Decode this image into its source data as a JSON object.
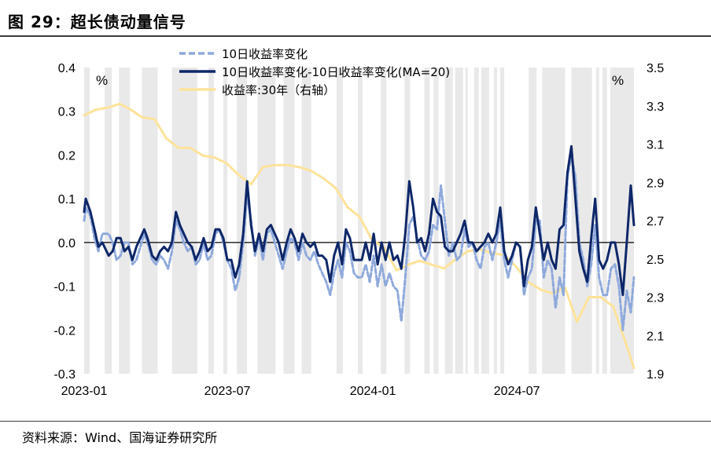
{
  "header": {
    "title": "图 29：超长债动量信号"
  },
  "footer": {
    "source": "资料来源：Wind、国海证券研究所"
  },
  "chart_data": {
    "type": "line",
    "left_unit": "%",
    "right_unit": "%",
    "y_left": {
      "min": -0.3,
      "max": 0.4,
      "ticks": [
        "0.4",
        "0.3",
        "0.2",
        "0.1",
        "0.0",
        "-0.1",
        "-0.2",
        "-0.3"
      ]
    },
    "y_right": {
      "min": 1.9,
      "max": 3.5,
      "ticks": [
        "3.5",
        "3.3",
        "3.1",
        "2.9",
        "2.7",
        "2.5",
        "2.3",
        "2.1",
        "1.9"
      ]
    },
    "x_range": [
      "2023-01-01",
      "2024-11-26"
    ],
    "x_ticks": [
      "2023-01",
      "2023-07",
      "2024-01",
      "2024-07"
    ],
    "colors": {
      "diff_10d": "#8ea9dc",
      "diff_ma": "#0e2769",
      "yield_30y": "#fde39a",
      "shade": "#e9e9e9",
      "zero_line": "#000000"
    },
    "legend": [
      {
        "name": "10日收益率变化",
        "style": "dashed",
        "color": "#8ea9dc"
      },
      {
        "name": "10日收益率变化-10日收益率变化(MA=20)",
        "style": "solid",
        "color": "#0e2769"
      },
      {
        "name": "收益率:30年（右轴）",
        "style": "solid",
        "color": "#fde39a"
      }
    ],
    "shaded_periods": [
      [
        "2022-12-29",
        "2023-01-08"
      ],
      [
        "2023-01-27",
        "2023-02-05"
      ],
      [
        "2023-02-14",
        "2023-02-28"
      ],
      [
        "2023-03-15",
        "2023-04-04"
      ],
      [
        "2023-04-22",
        "2023-05-24"
      ],
      [
        "2023-06-07",
        "2023-06-14"
      ],
      [
        "2023-06-26",
        "2023-07-01"
      ],
      [
        "2023-07-13",
        "2023-07-26"
      ],
      [
        "2023-08-08",
        "2023-08-31"
      ],
      [
        "2023-09-10",
        "2023-09-24"
      ],
      [
        "2023-10-03",
        "2023-10-15"
      ],
      [
        "2023-11-16",
        "2023-11-24"
      ],
      [
        "2023-12-13",
        "2023-12-19"
      ],
      [
        "2024-01-11",
        "2024-01-18"
      ],
      [
        "2024-02-10",
        "2024-02-17"
      ],
      [
        "2024-03-06",
        "2024-03-13"
      ],
      [
        "2024-03-18",
        "2024-03-24"
      ],
      [
        "2024-04-01",
        "2024-04-11"
      ],
      [
        "2024-04-14",
        "2024-04-24"
      ],
      [
        "2024-04-27",
        "2024-04-30"
      ],
      [
        "2024-05-08",
        "2024-05-14"
      ],
      [
        "2024-05-17",
        "2024-05-27"
      ],
      [
        "2024-06-02",
        "2024-06-06"
      ],
      [
        "2024-06-10",
        "2024-06-15"
      ],
      [
        "2024-07-16",
        "2024-07-26"
      ],
      [
        "2024-08-02",
        "2024-08-31"
      ],
      [
        "2024-09-08",
        "2024-10-04"
      ],
      [
        "2024-10-09",
        "2024-10-13"
      ],
      [
        "2024-10-17",
        "2024-10-23"
      ],
      [
        "2024-10-27",
        "2024-11-26"
      ]
    ],
    "series": [
      {
        "name": "10日收益率变化",
        "axis": "left",
        "x": [
          "2023-01-01",
          "2023-01-03",
          "2023-01-09",
          "2023-01-14",
          "2023-01-19",
          "2023-01-24",
          "2023-02-01",
          "2023-02-06",
          "2023-02-11",
          "2023-02-16",
          "2023-02-21",
          "2023-02-26",
          "2023-03-03",
          "2023-03-08",
          "2023-03-13",
          "2023-03-18",
          "2023-03-22",
          "2023-03-28",
          "2023-04-02",
          "2023-04-07",
          "2023-04-12",
          "2023-04-17",
          "2023-04-22",
          "2023-04-27",
          "2023-05-02",
          "2023-05-07",
          "2023-05-12",
          "2023-05-17",
          "2023-05-22",
          "2023-05-27",
          "2023-06-01",
          "2023-06-06",
          "2023-06-11",
          "2023-06-16",
          "2023-06-21",
          "2023-06-26",
          "2023-07-01",
          "2023-07-06",
          "2023-07-11",
          "2023-07-16",
          "2023-07-21",
          "2023-07-26",
          "2023-07-31",
          "2023-08-05",
          "2023-08-10",
          "2023-08-15",
          "2023-08-20",
          "2023-08-25",
          "2023-08-30",
          "2023-09-04",
          "2023-09-09",
          "2023-09-14",
          "2023-09-19",
          "2023-09-24",
          "2023-09-29",
          "2023-10-04",
          "2023-10-09",
          "2023-10-14",
          "2023-10-19",
          "2023-10-24",
          "2023-10-29",
          "2023-11-03",
          "2023-11-08",
          "2023-11-13",
          "2023-11-18",
          "2023-11-23",
          "2023-11-28",
          "2023-12-03",
          "2023-12-08",
          "2023-12-13",
          "2023-12-18",
          "2023-12-23",
          "2023-12-28",
          "2024-01-02",
          "2024-01-07",
          "2024-01-12",
          "2024-01-17",
          "2024-01-22",
          "2024-01-27",
          "2024-02-01",
          "2024-02-06",
          "2024-02-11",
          "2024-02-16",
          "2024-02-21",
          "2024-02-26",
          "2024-03-02",
          "2024-03-07",
          "2024-03-12",
          "2024-03-17",
          "2024-03-22",
          "2024-03-27",
          "2024-04-01",
          "2024-04-06",
          "2024-04-11",
          "2024-04-16",
          "2024-04-21",
          "2024-04-26",
          "2024-05-01",
          "2024-05-06",
          "2024-05-11",
          "2024-05-16",
          "2024-05-21",
          "2024-05-26",
          "2024-05-31",
          "2024-06-05",
          "2024-06-10",
          "2024-06-15",
          "2024-06-20",
          "2024-06-25",
          "2024-06-30",
          "2024-07-05",
          "2024-07-10",
          "2024-07-15",
          "2024-07-20",
          "2024-07-25",
          "2024-07-30",
          "2024-08-04",
          "2024-08-09",
          "2024-08-14",
          "2024-08-19",
          "2024-08-24",
          "2024-08-29",
          "2024-09-03",
          "2024-09-08",
          "2024-09-13",
          "2024-09-18",
          "2024-09-23",
          "2024-09-28",
          "2024-10-03",
          "2024-10-08",
          "2024-10-13",
          "2024-10-18",
          "2024-10-23",
          "2024-10-28",
          "2024-11-02",
          "2024-11-07",
          "2024-11-12",
          "2024-11-17",
          "2024-11-22",
          "2024-11-26"
        ],
        "values": [
          0.05,
          0.08,
          0.06,
          0.01,
          -0.02,
          0.02,
          0.02,
          0.0,
          -0.04,
          -0.03,
          0.0,
          0.0,
          -0.05,
          -0.04,
          -0.01,
          0.02,
          0.0,
          -0.04,
          -0.05,
          -0.03,
          -0.04,
          -0.06,
          -0.02,
          0.05,
          0.03,
          0.0,
          -0.02,
          -0.01,
          -0.05,
          -0.04,
          0.0,
          -0.04,
          -0.03,
          0.02,
          0.03,
          0.0,
          -0.04,
          -0.06,
          -0.11,
          -0.08,
          0.0,
          0.11,
          0.05,
          -0.03,
          0.01,
          -0.04,
          0.02,
          0.03,
          0.0,
          -0.03,
          -0.06,
          -0.02,
          0.01,
          0.0,
          -0.04,
          0.0,
          -0.03,
          -0.04,
          -0.02,
          -0.05,
          -0.07,
          -0.09,
          -0.12,
          -0.07,
          -0.04,
          -0.08,
          0.0,
          -0.02,
          -0.07,
          -0.08,
          -0.08,
          -0.05,
          -0.09,
          -0.03,
          -0.1,
          -0.05,
          -0.1,
          -0.07,
          -0.1,
          -0.11,
          -0.18,
          -0.08,
          0.04,
          0.06,
          0.01,
          -0.03,
          -0.04,
          -0.02,
          0.04,
          0.03,
          0.13,
          0.05,
          -0.03,
          0.0,
          -0.04,
          -0.03,
          0.03,
          -0.01,
          0.0,
          -0.04,
          -0.06,
          -0.01,
          0.0,
          -0.04,
          0.0,
          0.05,
          -0.04,
          -0.08,
          -0.04,
          0.0,
          -0.01,
          -0.12,
          -0.08,
          -0.06,
          0.05,
          0.05,
          -0.08,
          -0.04,
          -0.06,
          -0.15,
          -0.08,
          -0.12,
          0.15,
          0.2,
          0.15,
          0.0,
          -0.04,
          -0.1,
          -0.05,
          0.04,
          -0.08,
          -0.12,
          -0.12,
          -0.06,
          -0.05,
          -0.1,
          -0.2,
          -0.11,
          -0.16,
          -0.08
        ]
      },
      {
        "name": "10日收益率变化-10日收益率变化(MA=20)",
        "axis": "left",
        "x": [
          "2023-01-01",
          "2023-01-03",
          "2023-01-09",
          "2023-01-14",
          "2023-01-19",
          "2023-01-24",
          "2023-02-01",
          "2023-02-06",
          "2023-02-11",
          "2023-02-16",
          "2023-02-21",
          "2023-02-26",
          "2023-03-03",
          "2023-03-08",
          "2023-03-13",
          "2023-03-18",
          "2023-03-22",
          "2023-03-28",
          "2023-04-02",
          "2023-04-07",
          "2023-04-12",
          "2023-04-17",
          "2023-04-22",
          "2023-04-27",
          "2023-05-02",
          "2023-05-07",
          "2023-05-12",
          "2023-05-17",
          "2023-05-22",
          "2023-05-27",
          "2023-06-01",
          "2023-06-06",
          "2023-06-11",
          "2023-06-16",
          "2023-06-21",
          "2023-06-26",
          "2023-07-01",
          "2023-07-06",
          "2023-07-11",
          "2023-07-16",
          "2023-07-21",
          "2023-07-26",
          "2023-07-31",
          "2023-08-05",
          "2023-08-10",
          "2023-08-15",
          "2023-08-20",
          "2023-08-25",
          "2023-08-30",
          "2023-09-04",
          "2023-09-09",
          "2023-09-14",
          "2023-09-19",
          "2023-09-24",
          "2023-09-29",
          "2023-10-04",
          "2023-10-09",
          "2023-10-14",
          "2023-10-19",
          "2023-10-24",
          "2023-10-29",
          "2023-11-03",
          "2023-11-08",
          "2023-11-13",
          "2023-11-18",
          "2023-11-23",
          "2023-11-28",
          "2023-12-03",
          "2023-12-08",
          "2023-12-13",
          "2023-12-18",
          "2023-12-23",
          "2023-12-28",
          "2024-01-02",
          "2024-01-07",
          "2024-01-12",
          "2024-01-17",
          "2024-01-22",
          "2024-01-27",
          "2024-02-01",
          "2024-02-06",
          "2024-02-11",
          "2024-02-16",
          "2024-02-21",
          "2024-02-26",
          "2024-03-02",
          "2024-03-07",
          "2024-03-12",
          "2024-03-17",
          "2024-03-22",
          "2024-03-27",
          "2024-04-01",
          "2024-04-06",
          "2024-04-11",
          "2024-04-16",
          "2024-04-21",
          "2024-04-26",
          "2024-05-01",
          "2024-05-06",
          "2024-05-11",
          "2024-05-16",
          "2024-05-21",
          "2024-05-26",
          "2024-05-31",
          "2024-06-05",
          "2024-06-10",
          "2024-06-15",
          "2024-06-20",
          "2024-06-25",
          "2024-06-30",
          "2024-07-05",
          "2024-07-10",
          "2024-07-15",
          "2024-07-20",
          "2024-07-25",
          "2024-07-30",
          "2024-08-04",
          "2024-08-09",
          "2024-08-14",
          "2024-08-19",
          "2024-08-24",
          "2024-08-29",
          "2024-09-03",
          "2024-09-08",
          "2024-09-13",
          "2024-09-18",
          "2024-09-23",
          "2024-09-28",
          "2024-10-03",
          "2024-10-08",
          "2024-10-13",
          "2024-10-18",
          "2024-10-23",
          "2024-10-28",
          "2024-11-02",
          "2024-11-07",
          "2024-11-12",
          "2024-11-17",
          "2024-11-22",
          "2024-11-26"
        ],
        "values": [
          0.07,
          0.1,
          0.07,
          0.03,
          -0.01,
          0.0,
          -0.03,
          -0.02,
          0.01,
          0.01,
          -0.02,
          -0.01,
          -0.04,
          -0.01,
          0.01,
          0.03,
          0.01,
          -0.03,
          -0.04,
          -0.02,
          -0.01,
          -0.02,
          0.0,
          0.07,
          0.04,
          0.02,
          0.0,
          -0.01,
          -0.04,
          -0.02,
          0.01,
          -0.02,
          -0.01,
          0.03,
          0.03,
          0.01,
          -0.04,
          -0.04,
          -0.08,
          -0.05,
          0.02,
          0.14,
          0.04,
          -0.02,
          0.02,
          -0.02,
          0.03,
          0.04,
          0.02,
          0.0,
          -0.04,
          0.0,
          0.03,
          0.01,
          -0.02,
          0.02,
          0.0,
          -0.01,
          0.0,
          -0.03,
          -0.03,
          -0.04,
          -0.09,
          -0.03,
          0.0,
          -0.05,
          0.03,
          0.01,
          -0.04,
          -0.04,
          -0.04,
          0.0,
          -0.04,
          0.02,
          -0.05,
          0.0,
          -0.04,
          0.0,
          -0.04,
          -0.03,
          -0.06,
          0.02,
          0.14,
          0.08,
          0.0,
          0.01,
          -0.02,
          0.02,
          0.1,
          0.07,
          0.06,
          -0.01,
          -0.02,
          -0.02,
          0.0,
          0.02,
          0.05,
          0.0,
          0.0,
          -0.02,
          -0.01,
          0.0,
          0.02,
          0.0,
          0.02,
          0.08,
          -0.02,
          -0.05,
          -0.03,
          0.0,
          -0.01,
          -0.1,
          -0.04,
          -0.01,
          0.08,
          0.02,
          -0.04,
          0.0,
          -0.04,
          -0.06,
          0.03,
          0.04,
          0.16,
          0.22,
          0.1,
          -0.02,
          -0.06,
          -0.09,
          0.01,
          0.1,
          -0.04,
          -0.06,
          -0.04,
          0.0,
          0.0,
          -0.05,
          -0.12,
          0.0,
          0.13,
          0.04
        ]
      },
      {
        "name": "收益率:30年（右轴）",
        "axis": "right",
        "x": [
          "2023-01-01",
          "2023-01-16",
          "2023-01-31",
          "2023-02-15",
          "2023-03-01",
          "2023-03-15",
          "2023-03-31",
          "2023-04-15",
          "2023-04-30",
          "2023-05-15",
          "2023-05-31",
          "2023-06-15",
          "2023-06-30",
          "2023-07-15",
          "2023-07-31",
          "2023-08-15",
          "2023-08-31",
          "2023-09-15",
          "2023-09-30",
          "2023-10-15",
          "2023-10-31",
          "2023-11-15",
          "2023-11-30",
          "2023-12-15",
          "2023-12-31",
          "2024-01-15",
          "2024-01-31",
          "2024-02-15",
          "2024-02-29",
          "2024-03-15",
          "2024-03-31",
          "2024-04-15",
          "2024-04-30",
          "2024-05-15",
          "2024-05-31",
          "2024-06-15",
          "2024-06-30",
          "2024-07-15",
          "2024-07-31",
          "2024-08-15",
          "2024-08-31",
          "2024-09-15",
          "2024-09-30",
          "2024-10-15",
          "2024-10-31",
          "2024-11-15",
          "2024-11-26"
        ],
        "values": [
          3.25,
          3.28,
          3.29,
          3.31,
          3.28,
          3.24,
          3.23,
          3.13,
          3.08,
          3.08,
          3.04,
          3.03,
          3.0,
          2.94,
          2.89,
          2.98,
          2.99,
          2.99,
          2.98,
          2.96,
          2.92,
          2.87,
          2.77,
          2.72,
          2.6,
          2.56,
          2.44,
          2.47,
          2.49,
          2.47,
          2.45,
          2.5,
          2.54,
          2.55,
          2.53,
          2.52,
          2.46,
          2.38,
          2.34,
          2.32,
          2.35,
          2.17,
          2.3,
          2.3,
          2.25,
          2.07,
          1.93
        ]
      }
    ]
  }
}
